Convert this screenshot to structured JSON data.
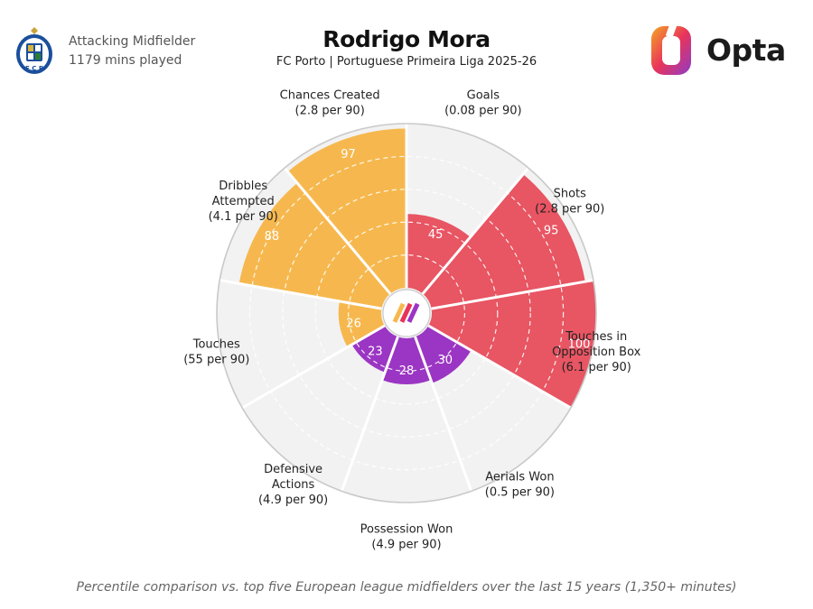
{
  "header": {
    "position": "Attacking Midfielder",
    "minutes": "1179 mins played",
    "title": "Rodrigo Mora",
    "subtitle": "FC Porto | Portuguese Primeira Liga 2025-26",
    "logo_text": "Opta"
  },
  "footnote": "Percentile comparison vs. top five European league midfielders over the last 15 years (1,350+ minutes)",
  "colors": {
    "attacking": "#E85563",
    "possession": "#F6B84E",
    "defending": "#9B35C3",
    "empty": "#F2F2F2",
    "outline": "#C9C9C9"
  },
  "chart_data": {
    "type": "polar-bar",
    "title": "Rodrigo Mora",
    "rlim": [
      0,
      100
    ],
    "segments": [
      {
        "label": [
          "Goals",
          "(0.08 per 90)"
        ],
        "value": 45,
        "group": "attacking"
      },
      {
        "label": [
          "Shots",
          "(2.8 per 90)"
        ],
        "value": 95,
        "group": "attacking"
      },
      {
        "label": [
          "Touches in",
          "Opposition Box",
          "(6.1 per 90)"
        ],
        "value": 100,
        "group": "attacking"
      },
      {
        "label": [
          "Aerials Won",
          "(0.5 per 90)"
        ],
        "value": 30,
        "group": "defending"
      },
      {
        "label": [
          "Possession Won",
          "(4.9 per 90)"
        ],
        "value": 28,
        "group": "defending"
      },
      {
        "label": [
          "Defensive",
          "Actions",
          "(4.9 per 90)"
        ],
        "value": 23,
        "group": "defending"
      },
      {
        "label": [
          "Touches",
          "(55 per 90)"
        ],
        "value": 26,
        "group": "possession"
      },
      {
        "label": [
          "Dribbles",
          "Attempted",
          "(4.1 per 90)"
        ],
        "value": 88,
        "group": "possession"
      },
      {
        "label": [
          "Chances Created",
          "(2.8 per 90)"
        ],
        "value": 97,
        "group": "possession"
      }
    ]
  }
}
